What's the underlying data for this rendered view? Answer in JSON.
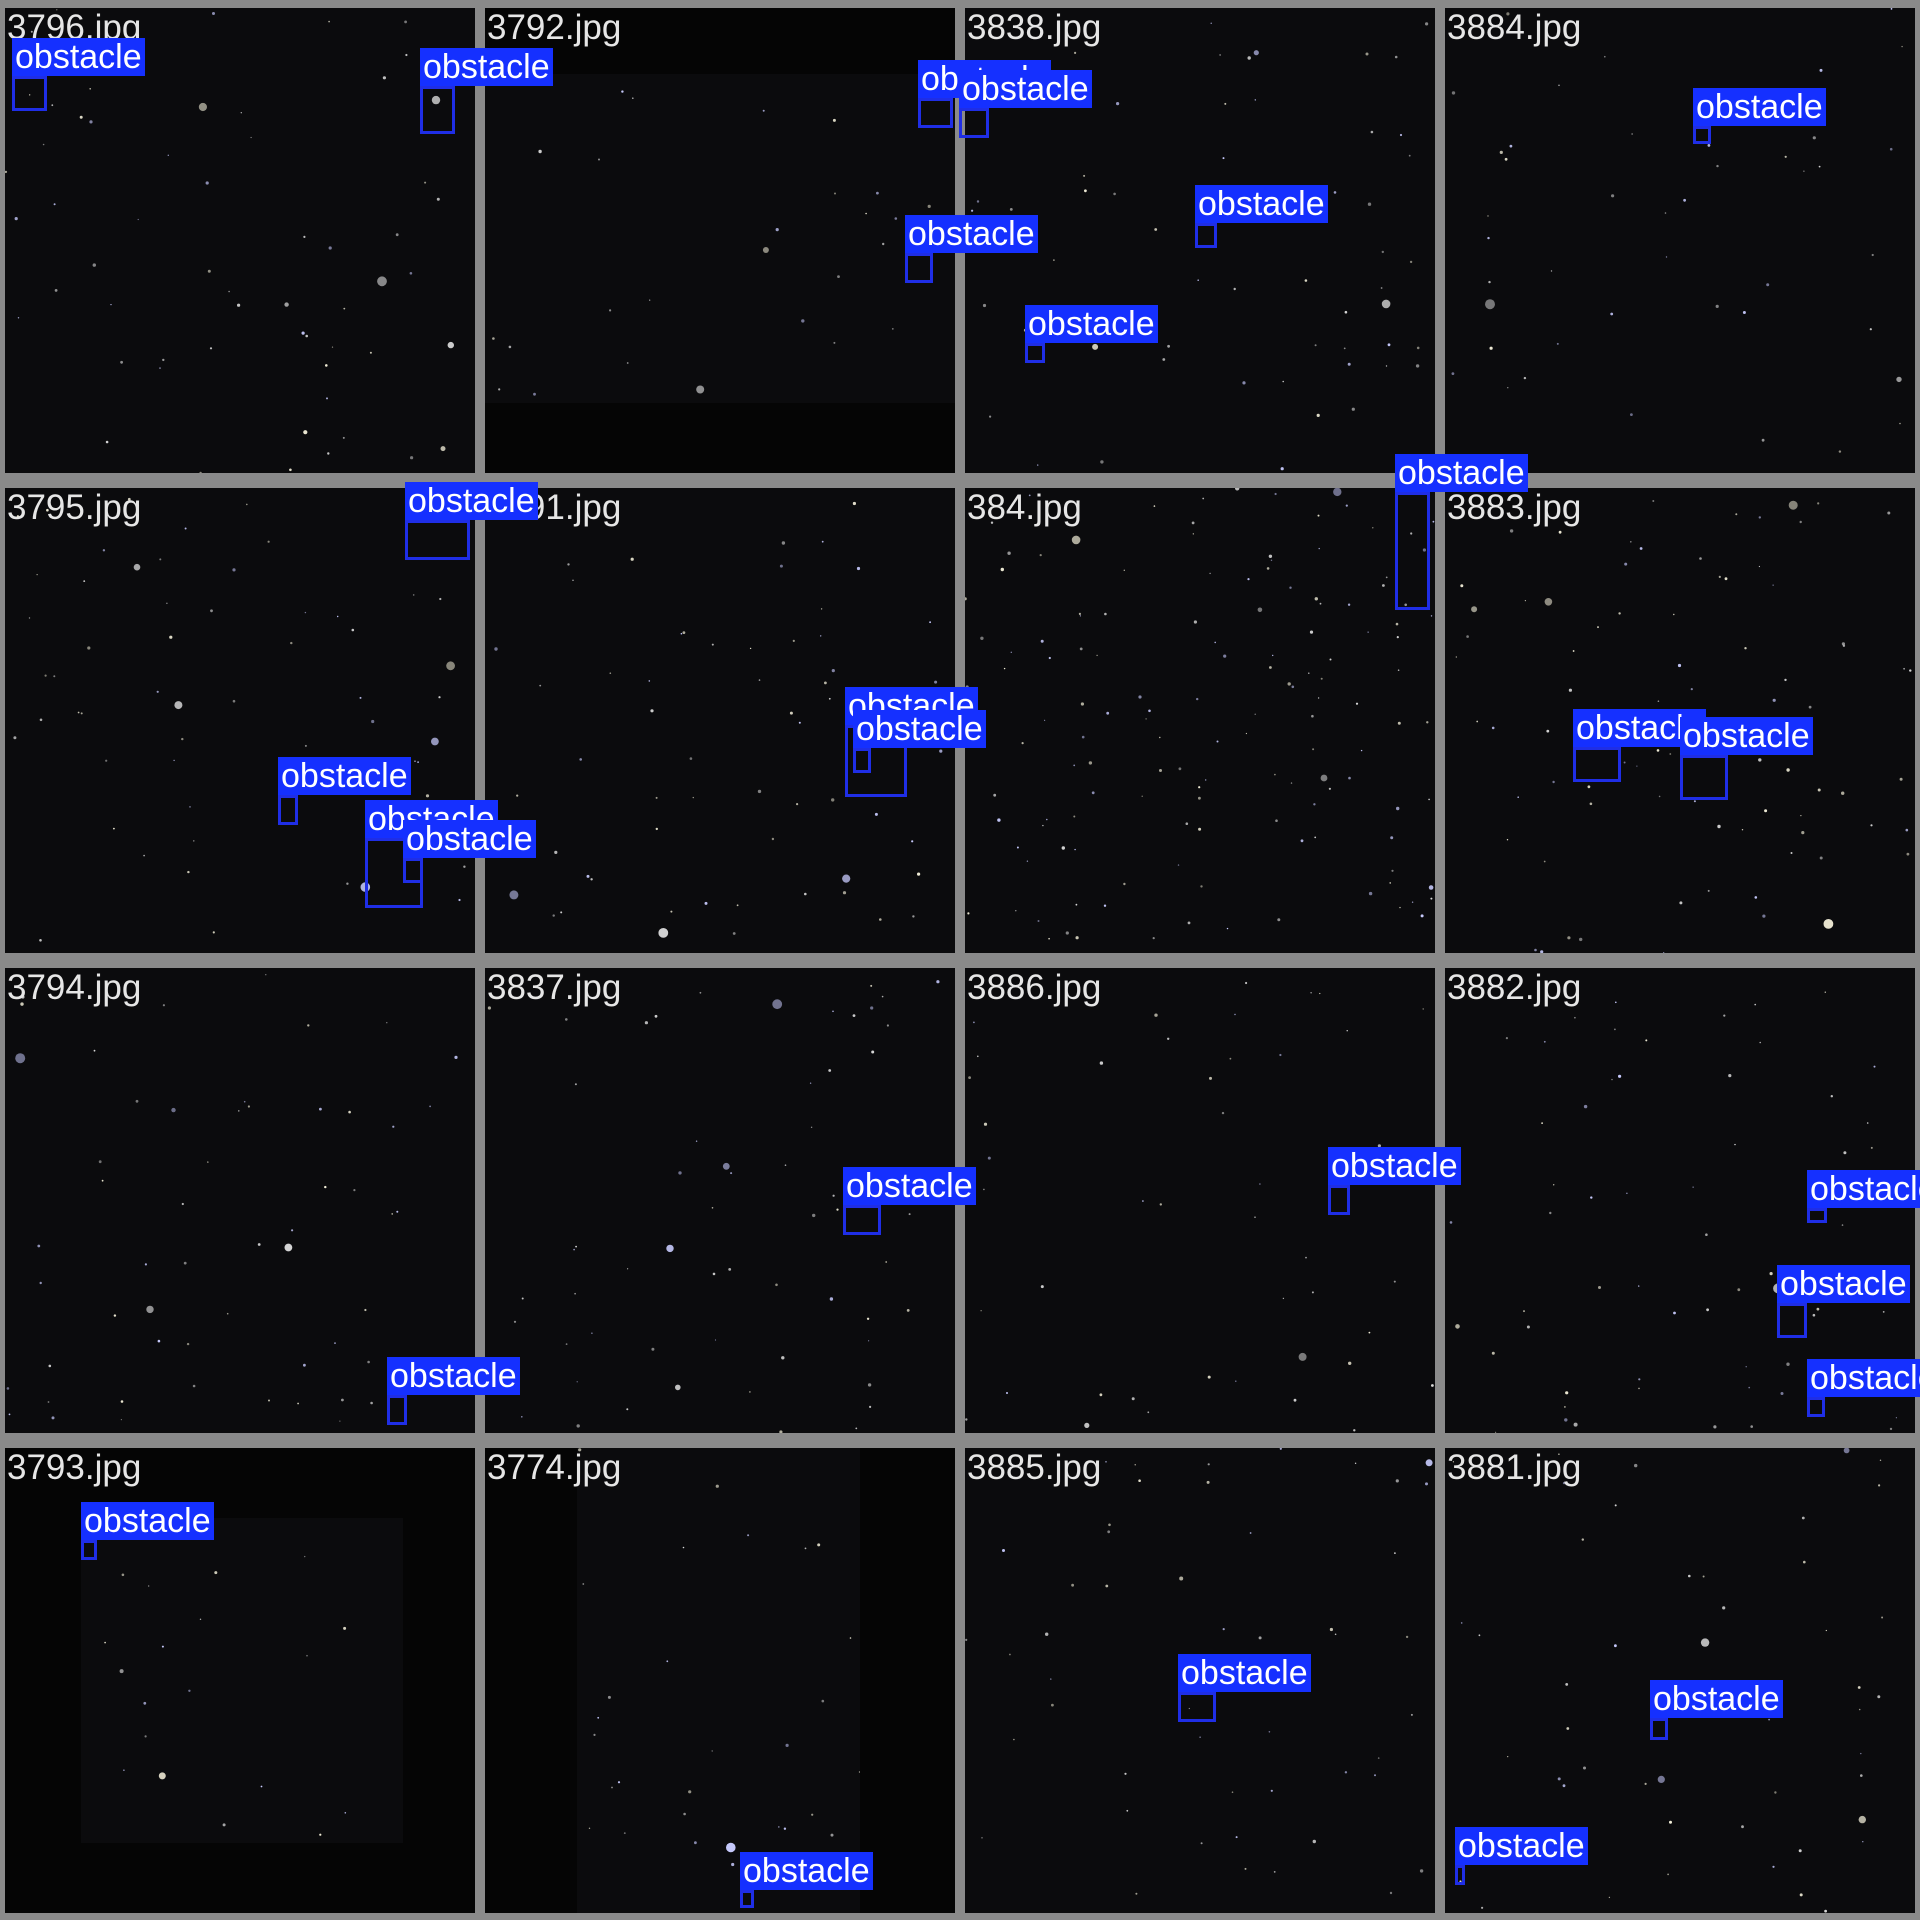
{
  "colors": {
    "frame": "#8a8a8a",
    "sky": "#0b0b0d",
    "box": "#1f2ee6",
    "label_bg": "#1530ff",
    "label_text": "#ffffff",
    "filename_text": "#e6e6e6"
  },
  "label_text": "obstacle",
  "tiles": [
    {
      "name": "3796.jpg",
      "stars": 60
    },
    {
      "name": "3792.jpg",
      "stars": 40
    },
    {
      "name": "3838.jpg",
      "stars": 55
    },
    {
      "name": "3884.jpg",
      "stars": 45
    },
    {
      "name": "3795.jpg",
      "stars": 55
    },
    {
      "name": "3791.jpg",
      "stars": 60
    },
    {
      "name": "384.jpg",
      "stars": 140
    },
    {
      "name": "3883.jpg",
      "stars": 80
    },
    {
      "name": "3794.jpg",
      "stars": 55
    },
    {
      "name": "3837.jpg",
      "stars": 60
    },
    {
      "name": "3886.jpg",
      "stars": 45
    },
    {
      "name": "3882.jpg",
      "stars": 60
    },
    {
      "name": "3793.jpg",
      "stars": 35
    },
    {
      "name": "3774.jpg",
      "stars": 50
    },
    {
      "name": "3885.jpg",
      "stars": 50
    },
    {
      "name": "3881.jpg",
      "stars": 50
    }
  ]
}
